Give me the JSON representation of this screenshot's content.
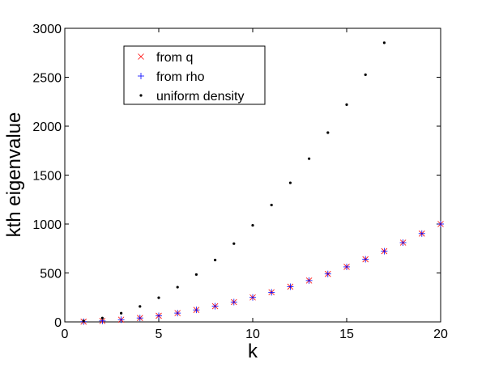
{
  "chart_data": {
    "type": "scatter",
    "xlabel": "k",
    "ylabel": "kth eigenvalue",
    "xlim": [
      0,
      20
    ],
    "ylim": [
      0,
      3000
    ],
    "xticks": [
      "0",
      "5",
      "10",
      "15",
      "20"
    ],
    "yticks": [
      "0",
      "500",
      "1000",
      "1500",
      "2000",
      "2500",
      "3000"
    ],
    "grid": false,
    "legend_position": "top-left",
    "series": [
      {
        "name": "from q",
        "marker": "x",
        "color": "#ff0000",
        "x": [
          1,
          2,
          3,
          4,
          5,
          6,
          7,
          8,
          9,
          10,
          11,
          12,
          13,
          14,
          15,
          16,
          17,
          18,
          19,
          20
        ],
        "y": [
          2.5,
          10,
          22.5,
          40,
          62.5,
          90,
          122.5,
          160,
          202.5,
          250,
          302.5,
          360,
          422.5,
          490,
          562.5,
          640,
          722.5,
          810,
          902.5,
          1000
        ]
      },
      {
        "name": "from rho",
        "marker": "+",
        "color": "#0000ff",
        "x": [
          1,
          2,
          3,
          4,
          5,
          6,
          7,
          8,
          9,
          10,
          11,
          12,
          13,
          14,
          15,
          16,
          17,
          18,
          19,
          20
        ],
        "y": [
          2.5,
          10,
          22.5,
          40,
          62.5,
          90,
          122.5,
          160,
          202.5,
          250,
          302.5,
          360,
          422.5,
          490,
          562.5,
          640,
          722.5,
          810,
          902.5,
          1000
        ]
      },
      {
        "name": "uniform density",
        "marker": ".",
        "color": "#000000",
        "x": [
          1,
          2,
          3,
          4,
          5,
          6,
          7,
          8,
          9,
          10,
          11,
          12,
          13,
          14,
          15,
          16,
          17
        ],
        "y": [
          9.9,
          39.5,
          88.8,
          158,
          247,
          355,
          484,
          632,
          800,
          987,
          1194,
          1421,
          1668,
          1934,
          2220,
          2526,
          2852
        ]
      }
    ]
  }
}
